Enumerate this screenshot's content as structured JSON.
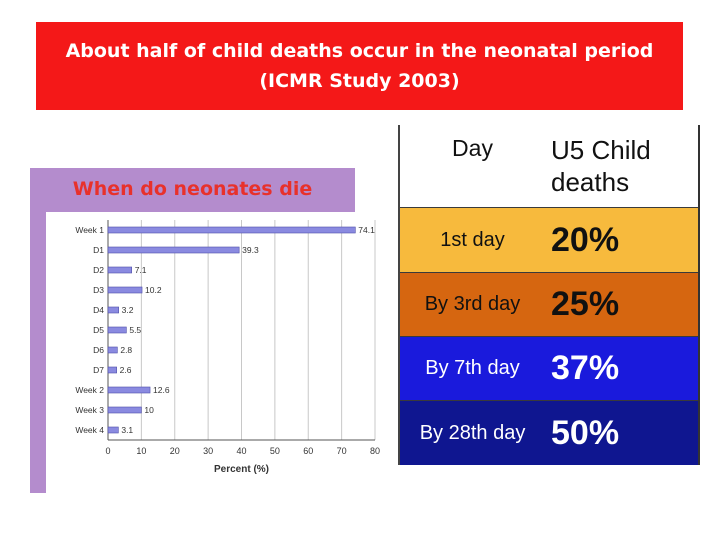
{
  "banner": {
    "title": "About half of child deaths occur in the neonatal period (ICMR Study 2003)"
  },
  "chart_panel": {
    "heading": "When do neonates die"
  },
  "chart_data": {
    "type": "bar",
    "orientation": "horizontal",
    "categories": [
      "Week 1",
      "D1",
      "D2",
      "D3",
      "D4",
      "D5",
      "D6",
      "D7",
      "Week 2",
      "Week 3",
      "Week 4"
    ],
    "values": [
      74.1,
      39.3,
      7.1,
      10.2,
      3.2,
      5.5,
      2.8,
      2.6,
      12.6,
      10,
      3.1
    ],
    "value_labels": [
      "74.1",
      "39.3",
      "7.1",
      "10.2",
      "3.2",
      "5.5",
      "2.8",
      "2.6",
      "12.6",
      "10",
      "3.1"
    ],
    "xlabel": "Percent (%)",
    "xticks": [
      0,
      10,
      20,
      30,
      40,
      50,
      60,
      70,
      80
    ],
    "xlim": [
      0,
      80
    ],
    "grid": true,
    "bar_color": "#8a8ae0"
  },
  "table": {
    "header": {
      "day": "Day",
      "deaths": "U5 Child deaths"
    },
    "rows": [
      {
        "day": "1st day",
        "value": "20%"
      },
      {
        "day": "By 3rd day",
        "value": "25%"
      },
      {
        "day": "By 7th day",
        "value": "37%"
      },
      {
        "day": "By 28th day",
        "value": "50%"
      }
    ]
  },
  "colors": {
    "banner": "#f41818",
    "panel": "#b48ccd",
    "heading": "#e8312b",
    "row1": "#f7ba3d",
    "row2": "#d66610",
    "row3": "#1a1adc",
    "row4": "#0f1690"
  }
}
